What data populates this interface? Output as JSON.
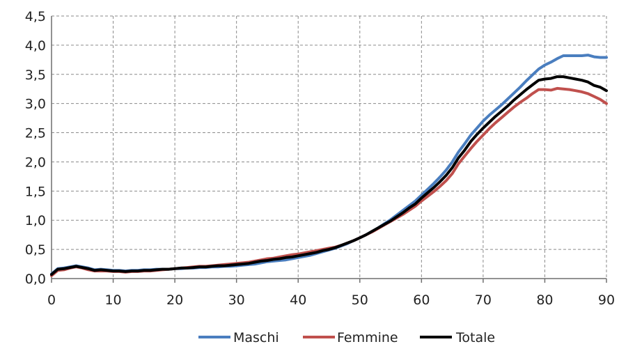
{
  "chart_data": {
    "type": "line",
    "title": "",
    "xlabel": "",
    "ylabel": "",
    "xlim": [
      0,
      90
    ],
    "ylim": [
      0,
      4.5
    ],
    "x_ticks": [
      0,
      10,
      20,
      30,
      40,
      50,
      60,
      70,
      80,
      90
    ],
    "x_tick_labels": [
      "0",
      "10",
      "20",
      "30",
      "40",
      "50",
      "60",
      "70",
      "80",
      "90"
    ],
    "y_ticks": [
      0,
      0.5,
      1,
      1.5,
      2,
      2.5,
      3,
      3.5,
      4,
      4.5
    ],
    "y_tick_labels": [
      "0,0",
      "0,5",
      "1,0",
      "1,5",
      "2,0",
      "2,5",
      "3,0",
      "3,5",
      "4,0",
      "4,5"
    ],
    "grid": true,
    "legend_position": "bottom",
    "x": [
      0,
      1,
      2,
      3,
      4,
      5,
      6,
      7,
      8,
      9,
      10,
      11,
      12,
      13,
      14,
      15,
      16,
      17,
      18,
      19,
      20,
      21,
      22,
      23,
      24,
      25,
      26,
      27,
      28,
      29,
      30,
      31,
      32,
      33,
      34,
      35,
      36,
      37,
      38,
      39,
      40,
      41,
      42,
      43,
      44,
      45,
      46,
      47,
      48,
      49,
      50,
      51,
      52,
      53,
      54,
      55,
      56,
      57,
      58,
      59,
      60,
      61,
      62,
      63,
      64,
      65,
      66,
      67,
      68,
      69,
      70,
      71,
      72,
      73,
      74,
      75,
      76,
      77,
      78,
      79,
      80,
      81,
      82,
      83,
      84,
      85,
      86,
      87,
      88,
      89,
      90
    ],
    "series": [
      {
        "name": "Maschi",
        "color": "#4a7ebf",
        "values": [
          0.08,
          0.17,
          0.18,
          0.2,
          0.22,
          0.2,
          0.18,
          0.15,
          0.16,
          0.15,
          0.14,
          0.14,
          0.13,
          0.14,
          0.14,
          0.15,
          0.15,
          0.16,
          0.16,
          0.16,
          0.17,
          0.17,
          0.18,
          0.18,
          0.19,
          0.19,
          0.2,
          0.2,
          0.21,
          0.21,
          0.22,
          0.23,
          0.24,
          0.25,
          0.27,
          0.29,
          0.3,
          0.31,
          0.32,
          0.34,
          0.36,
          0.38,
          0.4,
          0.43,
          0.46,
          0.49,
          0.52,
          0.56,
          0.6,
          0.65,
          0.7,
          0.75,
          0.81,
          0.87,
          0.94,
          1.01,
          1.09,
          1.17,
          1.25,
          1.33,
          1.43,
          1.53,
          1.63,
          1.74,
          1.86,
          2.0,
          2.17,
          2.31,
          2.46,
          2.58,
          2.7,
          2.8,
          2.89,
          2.98,
          3.08,
          3.18,
          3.28,
          3.39,
          3.49,
          3.59,
          3.66,
          3.71,
          3.77,
          3.82,
          3.82,
          3.82,
          3.82,
          3.83,
          3.8,
          3.79,
          3.79
        ]
      },
      {
        "name": "Femmine",
        "color": "#c0504d",
        "values": [
          0.05,
          0.14,
          0.15,
          0.18,
          0.2,
          0.18,
          0.15,
          0.13,
          0.13,
          0.13,
          0.12,
          0.12,
          0.11,
          0.12,
          0.12,
          0.13,
          0.13,
          0.14,
          0.15,
          0.16,
          0.17,
          0.18,
          0.19,
          0.2,
          0.21,
          0.21,
          0.22,
          0.23,
          0.24,
          0.25,
          0.26,
          0.27,
          0.28,
          0.3,
          0.32,
          0.34,
          0.35,
          0.37,
          0.39,
          0.41,
          0.42,
          0.44,
          0.46,
          0.48,
          0.5,
          0.52,
          0.54,
          0.57,
          0.61,
          0.65,
          0.7,
          0.75,
          0.8,
          0.86,
          0.92,
          0.98,
          1.04,
          1.1,
          1.17,
          1.24,
          1.33,
          1.41,
          1.49,
          1.58,
          1.68,
          1.8,
          1.97,
          2.1,
          2.23,
          2.35,
          2.46,
          2.57,
          2.67,
          2.76,
          2.85,
          2.94,
          3.02,
          3.09,
          3.17,
          3.24,
          3.24,
          3.23,
          3.26,
          3.25,
          3.24,
          3.22,
          3.2,
          3.17,
          3.12,
          3.07,
          3.0
        ]
      },
      {
        "name": "Totale",
        "color": "#000000",
        "values": [
          0.07,
          0.16,
          0.17,
          0.19,
          0.21,
          0.19,
          0.17,
          0.14,
          0.15,
          0.14,
          0.13,
          0.13,
          0.12,
          0.13,
          0.13,
          0.14,
          0.14,
          0.15,
          0.16,
          0.16,
          0.17,
          0.18,
          0.18,
          0.19,
          0.2,
          0.2,
          0.21,
          0.22,
          0.22,
          0.23,
          0.24,
          0.25,
          0.26,
          0.28,
          0.3,
          0.31,
          0.33,
          0.34,
          0.36,
          0.37,
          0.39,
          0.41,
          0.43,
          0.45,
          0.48,
          0.5,
          0.53,
          0.57,
          0.61,
          0.65,
          0.7,
          0.75,
          0.81,
          0.87,
          0.93,
          0.99,
          1.06,
          1.13,
          1.21,
          1.28,
          1.38,
          1.47,
          1.56,
          1.66,
          1.77,
          1.9,
          2.07,
          2.2,
          2.35,
          2.47,
          2.58,
          2.68,
          2.78,
          2.87,
          2.96,
          3.06,
          3.15,
          3.24,
          3.32,
          3.4,
          3.42,
          3.43,
          3.46,
          3.46,
          3.44,
          3.42,
          3.4,
          3.37,
          3.31,
          3.28,
          3.22
        ]
      }
    ]
  }
}
